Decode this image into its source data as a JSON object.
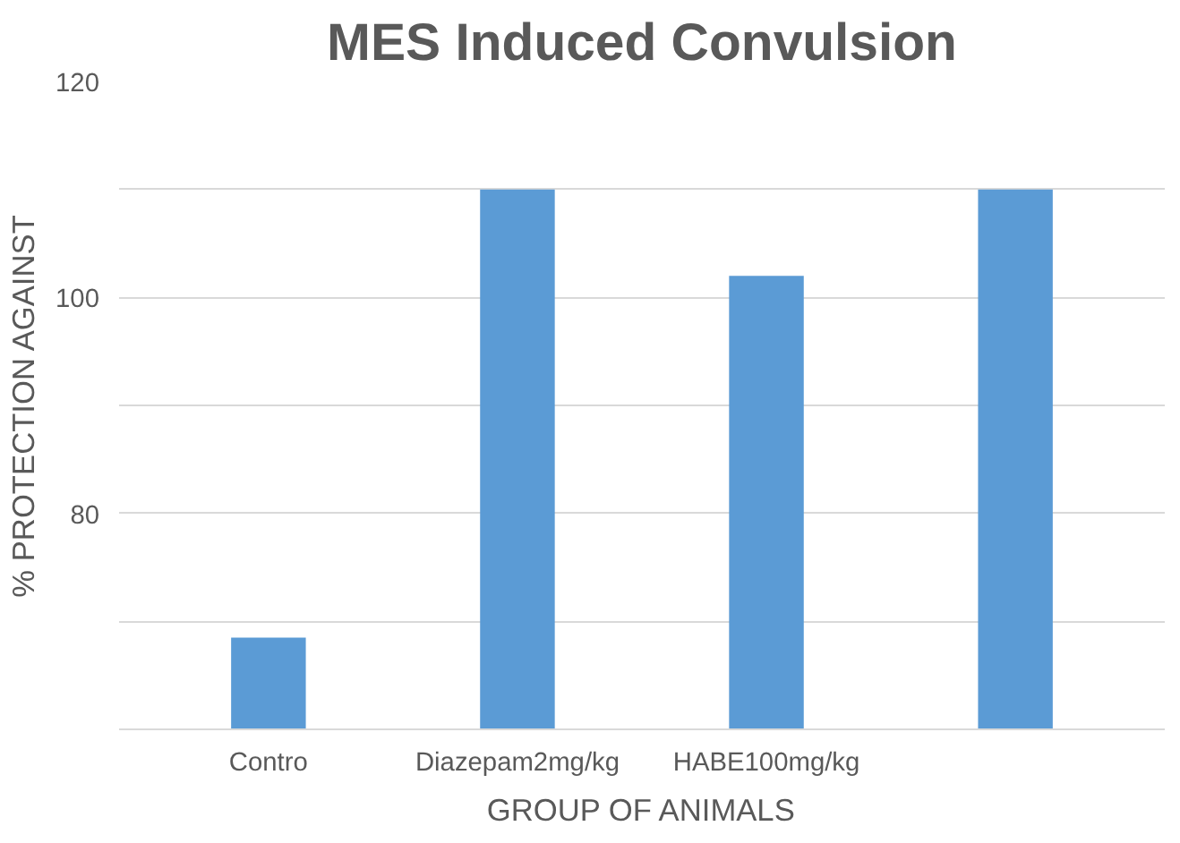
{
  "chart_data": {
    "type": "bar",
    "title": "MES Induced Convulsion",
    "xlabel": "GROUP OF ANIMALS",
    "ylabel": "% PROTECTION AGAINST",
    "categories": [
      "Contro",
      "Diazepam2mg/kg",
      "HABE100mg/kg",
      null
    ],
    "values": [
      68.5,
      110,
      102,
      110
    ],
    "color": "#5b9bd5",
    "ylim": [
      60,
      120
    ],
    "yticks": [
      {
        "value": 60,
        "label": null
      },
      {
        "value": 70,
        "label": null
      },
      80,
      {
        "value": 90,
        "label": null
      },
      100,
      {
        "value": 110,
        "label": null
      },
      120
    ],
    "grid": "y"
  }
}
